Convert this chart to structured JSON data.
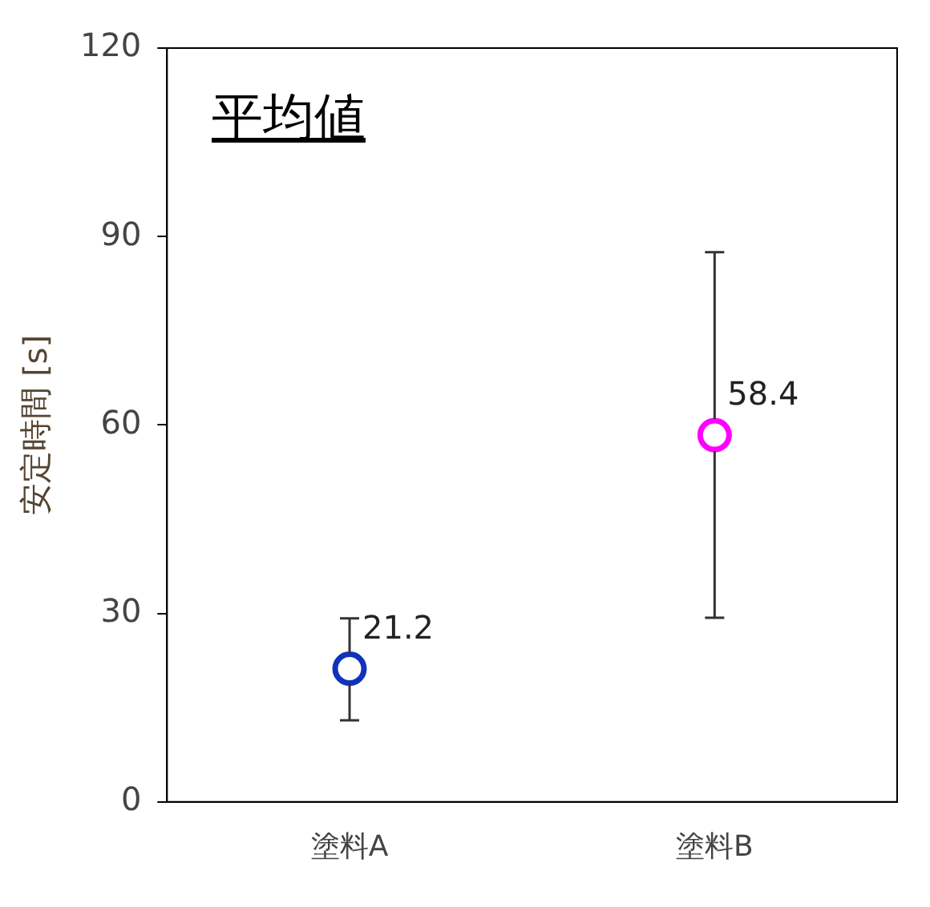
{
  "chart_data": {
    "type": "scatter",
    "title": "平均値",
    "ylabel": "安定時間 [s]",
    "categories": [
      "塗料A",
      "塗料B"
    ],
    "values": [
      21.2,
      58.4
    ],
    "colors": [
      "#1133bb",
      "#ff00ff"
    ],
    "errors": [
      [
        13,
        29.2
      ],
      [
        29.3,
        87.5
      ]
    ],
    "data_labels": true,
    "ylim": [
      0,
      120
    ],
    "yticks": [
      0,
      30,
      60,
      90,
      120
    ],
    "marker": "circle",
    "grid": false,
    "legend": false
  }
}
